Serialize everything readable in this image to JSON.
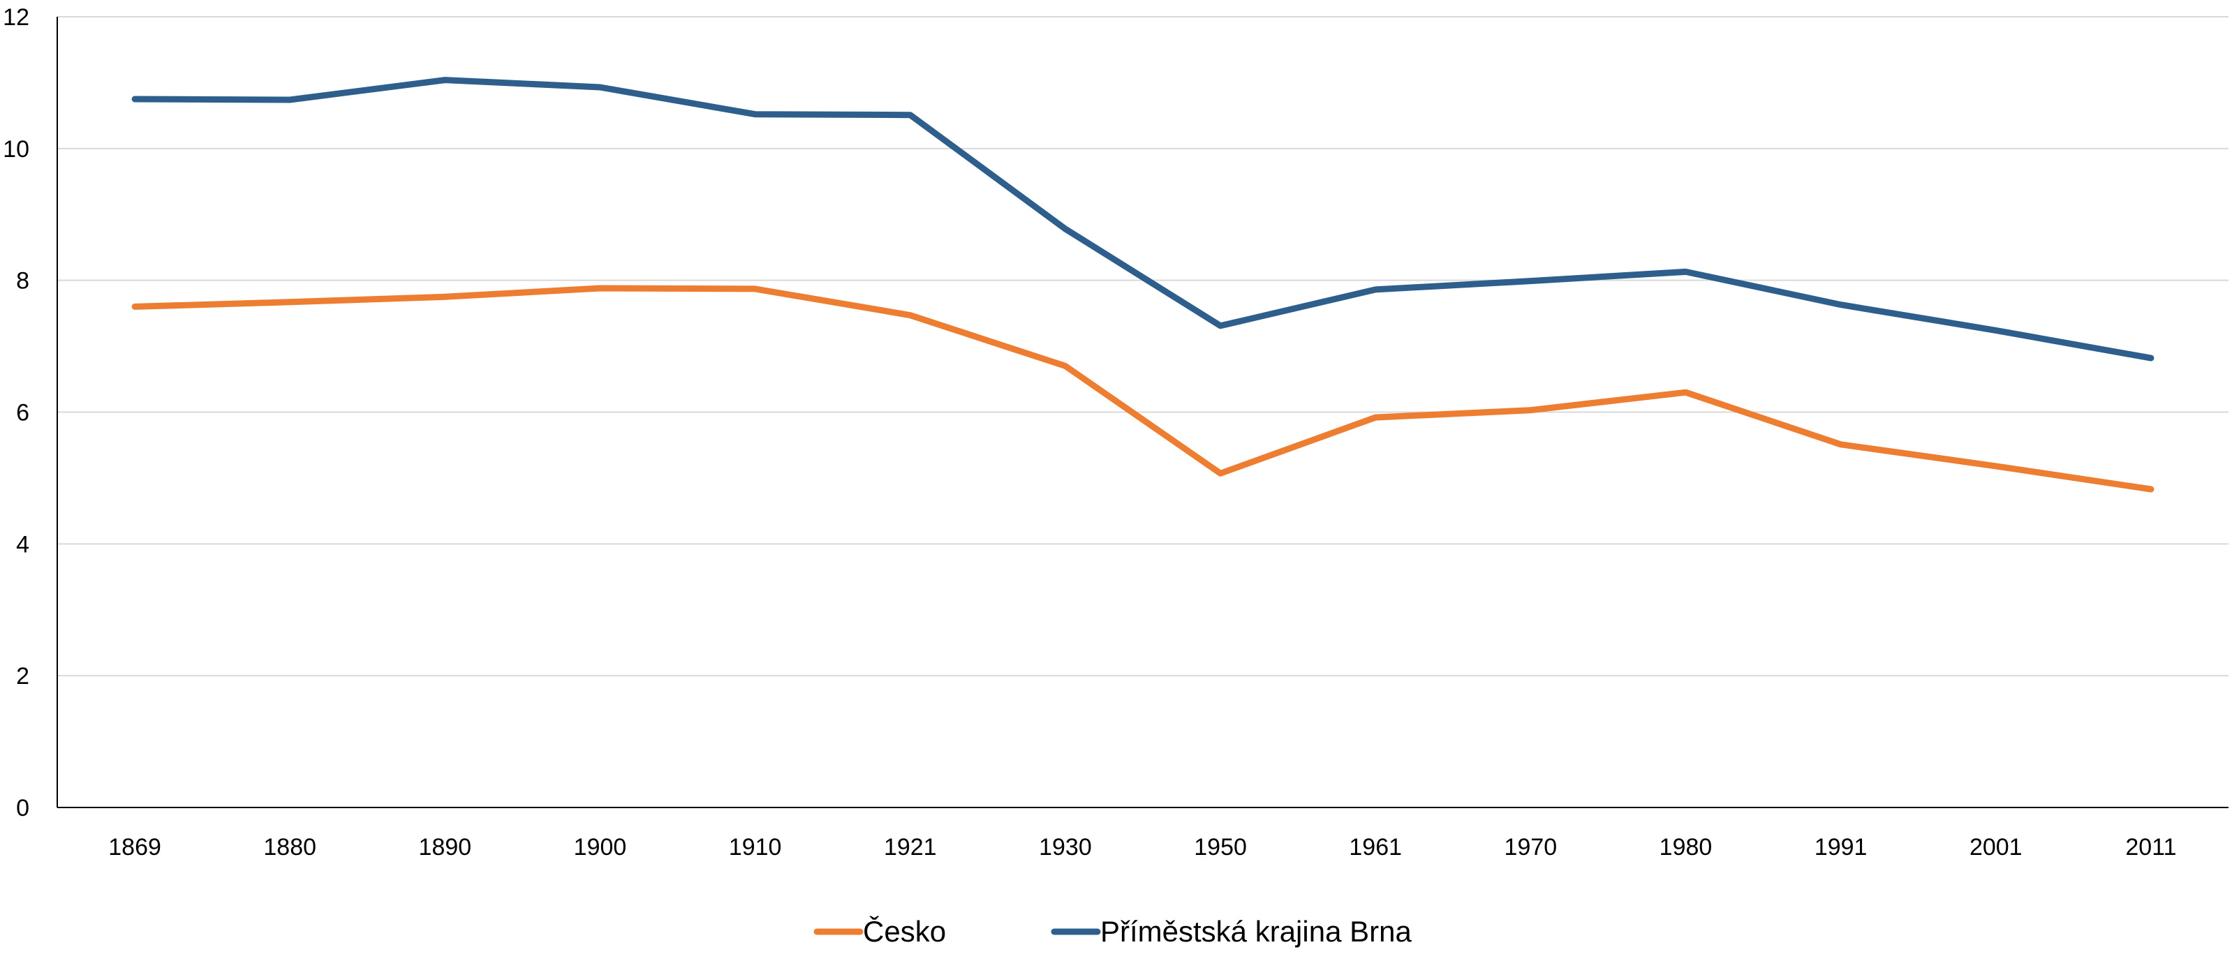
{
  "chart_data": {
    "type": "line",
    "categories": [
      "1869",
      "1880",
      "1890",
      "1900",
      "1910",
      "1921",
      "1930",
      "1950",
      "1961",
      "1970",
      "1980",
      "1991",
      "2001",
      "2011"
    ],
    "series": [
      {
        "name": "Česko",
        "color": "#ED7D31",
        "values": [
          7.6,
          7.67,
          7.75,
          7.88,
          7.87,
          7.47,
          6.7,
          5.07,
          5.92,
          6.03,
          6.3,
          5.51,
          5.18,
          4.83
        ]
      },
      {
        "name": "Příměstská krajina Brna",
        "color": "#2E5F8C",
        "values": [
          10.75,
          10.74,
          11.04,
          10.93,
          10.52,
          10.51,
          8.78,
          7.31,
          7.86,
          7.99,
          8.13,
          7.63,
          7.24,
          6.82
        ]
      }
    ],
    "yticks": [
      "0",
      "2",
      "4",
      "6",
      "8",
      "10",
      "12"
    ],
    "ylim": [
      0,
      12
    ],
    "title": "",
    "xlabel": "",
    "ylabel": "",
    "grid": true,
    "legend_position": "bottom"
  }
}
